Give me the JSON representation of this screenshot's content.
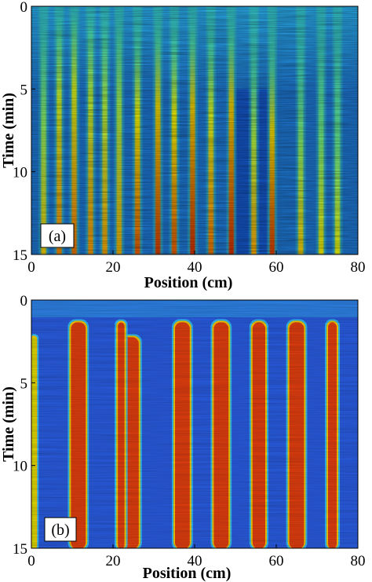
{
  "chart_data": [
    {
      "type": "heatmap",
      "panel_label": "(a)",
      "xlabel": "Position (cm)",
      "ylabel": "Time (min)",
      "xlim": [
        0,
        80
      ],
      "ylim": [
        0,
        15
      ],
      "y_inverted": true,
      "xticks": [
        "0",
        "20",
        "40",
        "60",
        "80"
      ],
      "yticks": [
        "0",
        "5",
        "10",
        "15"
      ],
      "colormap": [
        "#00008f",
        "#0050ff",
        "#00d0ff",
        "#80ff80",
        "#ffff00",
        "#ff8000",
        "#c00000"
      ],
      "stripes": [
        {
          "x": 3.0,
          "onset": 7.0,
          "peak": 0.62
        },
        {
          "x": 6.8,
          "onset": 5.5,
          "peak": 0.72
        },
        {
          "x": 10.5,
          "onset": 5.0,
          "peak": 0.74
        },
        {
          "x": 14.5,
          "onset": 5.5,
          "peak": 0.7
        },
        {
          "x": 18.0,
          "onset": 6.0,
          "peak": 0.68
        },
        {
          "x": 21.5,
          "onset": 6.0,
          "peak": 0.66
        },
        {
          "x": 26.0,
          "onset": 6.5,
          "peak": 0.78
        },
        {
          "x": 31.0,
          "onset": 6.0,
          "peak": 0.82
        },
        {
          "x": 35.0,
          "onset": 6.5,
          "peak": 0.78
        },
        {
          "x": 39.5,
          "onset": 6.0,
          "peak": 0.84
        },
        {
          "x": 44.0,
          "onset": 6.5,
          "peak": 0.74
        },
        {
          "x": 49.0,
          "onset": 6.0,
          "peak": 0.84
        },
        {
          "x": 54.5,
          "onset": 8.0,
          "peak": 0.68
        },
        {
          "x": 59.0,
          "onset": 7.5,
          "peak": 0.82
        },
        {
          "x": 66.0,
          "onset": 8.5,
          "peak": 0.62
        },
        {
          "x": 71.0,
          "onset": 8.0,
          "peak": 0.58
        },
        {
          "x": 75.0,
          "onset": 8.5,
          "peak": 0.56
        }
      ]
    },
    {
      "type": "heatmap",
      "panel_label": "(b)",
      "xlabel": "Position (cm)",
      "ylabel": "Time (min)",
      "xlim": [
        0,
        80
      ],
      "ylim": [
        0,
        15
      ],
      "y_inverted": true,
      "xticks": [
        "0",
        "20",
        "40",
        "60",
        "80"
      ],
      "yticks": [
        "0",
        "5",
        "10",
        "15"
      ],
      "colormap": [
        "#00008f",
        "#0050ff",
        "#00d0ff",
        "#80ff80",
        "#ffff00",
        "#ff8000",
        "#c00000"
      ],
      "bands": [
        {
          "x_start": 0.0,
          "x_end": 1.2,
          "onset": 2.2,
          "color": "#e0e000"
        },
        {
          "x_start": 9.5,
          "x_end": 13.5,
          "onset": 1.3,
          "color": "#e84010"
        },
        {
          "x_start": 21.0,
          "x_end": 26.5,
          "onset": 2.2,
          "color": "#e84010"
        },
        {
          "x_start": 21.0,
          "x_end": 23.0,
          "onset": 1.3,
          "color": "#e84010"
        },
        {
          "x_start": 35.0,
          "x_end": 39.0,
          "onset": 1.3,
          "color": "#e84010"
        },
        {
          "x_start": 44.5,
          "x_end": 48.5,
          "onset": 1.3,
          "color": "#e84010"
        },
        {
          "x_start": 54.0,
          "x_end": 57.5,
          "onset": 1.3,
          "color": "#e84010"
        },
        {
          "x_start": 63.0,
          "x_end": 67.0,
          "onset": 1.3,
          "color": "#e84010"
        },
        {
          "x_start": 72.5,
          "x_end": 75.0,
          "onset": 1.3,
          "color": "#e84010"
        }
      ]
    }
  ]
}
